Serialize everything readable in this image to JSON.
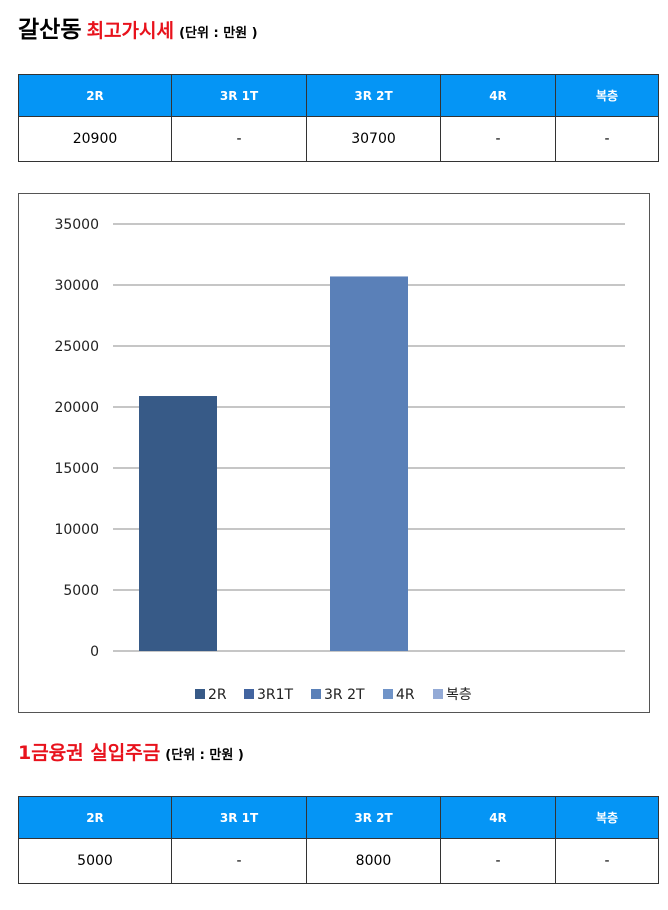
{
  "section1": {
    "place": "갈산동",
    "title": "최고가시세",
    "unit": "(단위 : 만원 )"
  },
  "table1": {
    "headers": [
      "2R",
      "3R 1T",
      "3R 2T",
      "4R",
      "복층"
    ],
    "values": [
      "20900",
      "-",
      "30700",
      "-",
      "-"
    ]
  },
  "chart_data": {
    "type": "bar",
    "categories": [
      "2R",
      "3R1T",
      "3R 2T",
      "4R",
      "복층"
    ],
    "values": [
      20900,
      null,
      30700,
      null,
      null
    ],
    "colors": [
      "#375a87",
      "#4264a0",
      "#5a80b8",
      "#7094c8",
      "#93aad6"
    ],
    "yticks": [
      0,
      5000,
      10000,
      15000,
      20000,
      25000,
      30000,
      35000
    ],
    "ylim": [
      0,
      35000
    ],
    "grid": true,
    "legend_position": "bottom",
    "title": "",
    "xlabel": "",
    "ylabel": ""
  },
  "section2": {
    "title": "1금융권 실입주금",
    "unit": "(단위 : 만원 )"
  },
  "table2": {
    "headers": [
      "2R",
      "3R 1T",
      "3R 2T",
      "4R",
      "복층"
    ],
    "values": [
      "5000",
      "-",
      "8000",
      "-",
      "-"
    ]
  }
}
